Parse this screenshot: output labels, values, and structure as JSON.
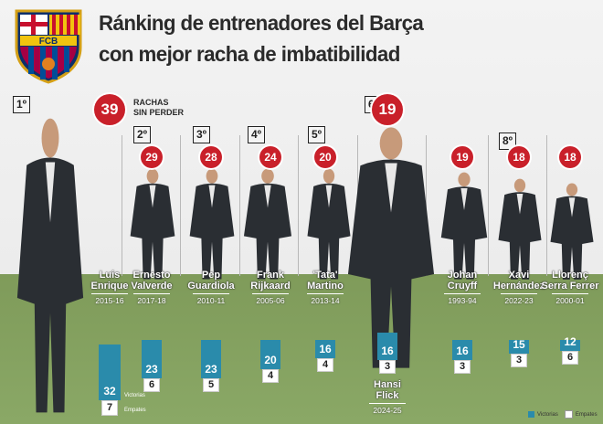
{
  "title_line1": "Ránking de entrenadores del Barça",
  "title_line2": "con mejor racha de imbatibilidad",
  "crest_text": "FCB",
  "caption": {
    "line1": "RACHAS",
    "line2": "SIN PERDER"
  },
  "labels": {
    "victorias": "Victorias",
    "empates": "Empates"
  },
  "colors": {
    "victorias": "#2a8bab",
    "empates": "#ffffff",
    "streak_circle": "#c9202a"
  },
  "chart_data": {
    "type": "bar",
    "title": "Ránking de entrenadores del Barça con mejor racha de imbatibilidad",
    "categories": [
      "Luis Enrique",
      "Ernesto Valverde",
      "Pep Guardiola",
      "Frank Rijkaard",
      "'Tata' Martino",
      "Hansi Flick",
      "Johan Cruyff",
      "Xavi Hernández",
      "Llorenç Serra Ferrer"
    ],
    "series": [
      {
        "name": "Victorias",
        "values": [
          32,
          23,
          23,
          20,
          16,
          16,
          16,
          15,
          12
        ]
      },
      {
        "name": "Empates",
        "values": [
          7,
          6,
          5,
          4,
          4,
          3,
          3,
          3,
          6
        ]
      }
    ],
    "streaks": [
      39,
      29,
      28,
      24,
      20,
      19,
      19,
      18,
      18
    ],
    "ranks": [
      "1º",
      "2º",
      "3º",
      "4º",
      "5º",
      "6º",
      "",
      "8º",
      ""
    ],
    "seasons": [
      "2015-16",
      "2017-18",
      "2010-11",
      "2005-06",
      "2013-14",
      "2024-25",
      "1993-94",
      "2022-23",
      "2000-01"
    ],
    "ylim": [
      0,
      40
    ]
  }
}
